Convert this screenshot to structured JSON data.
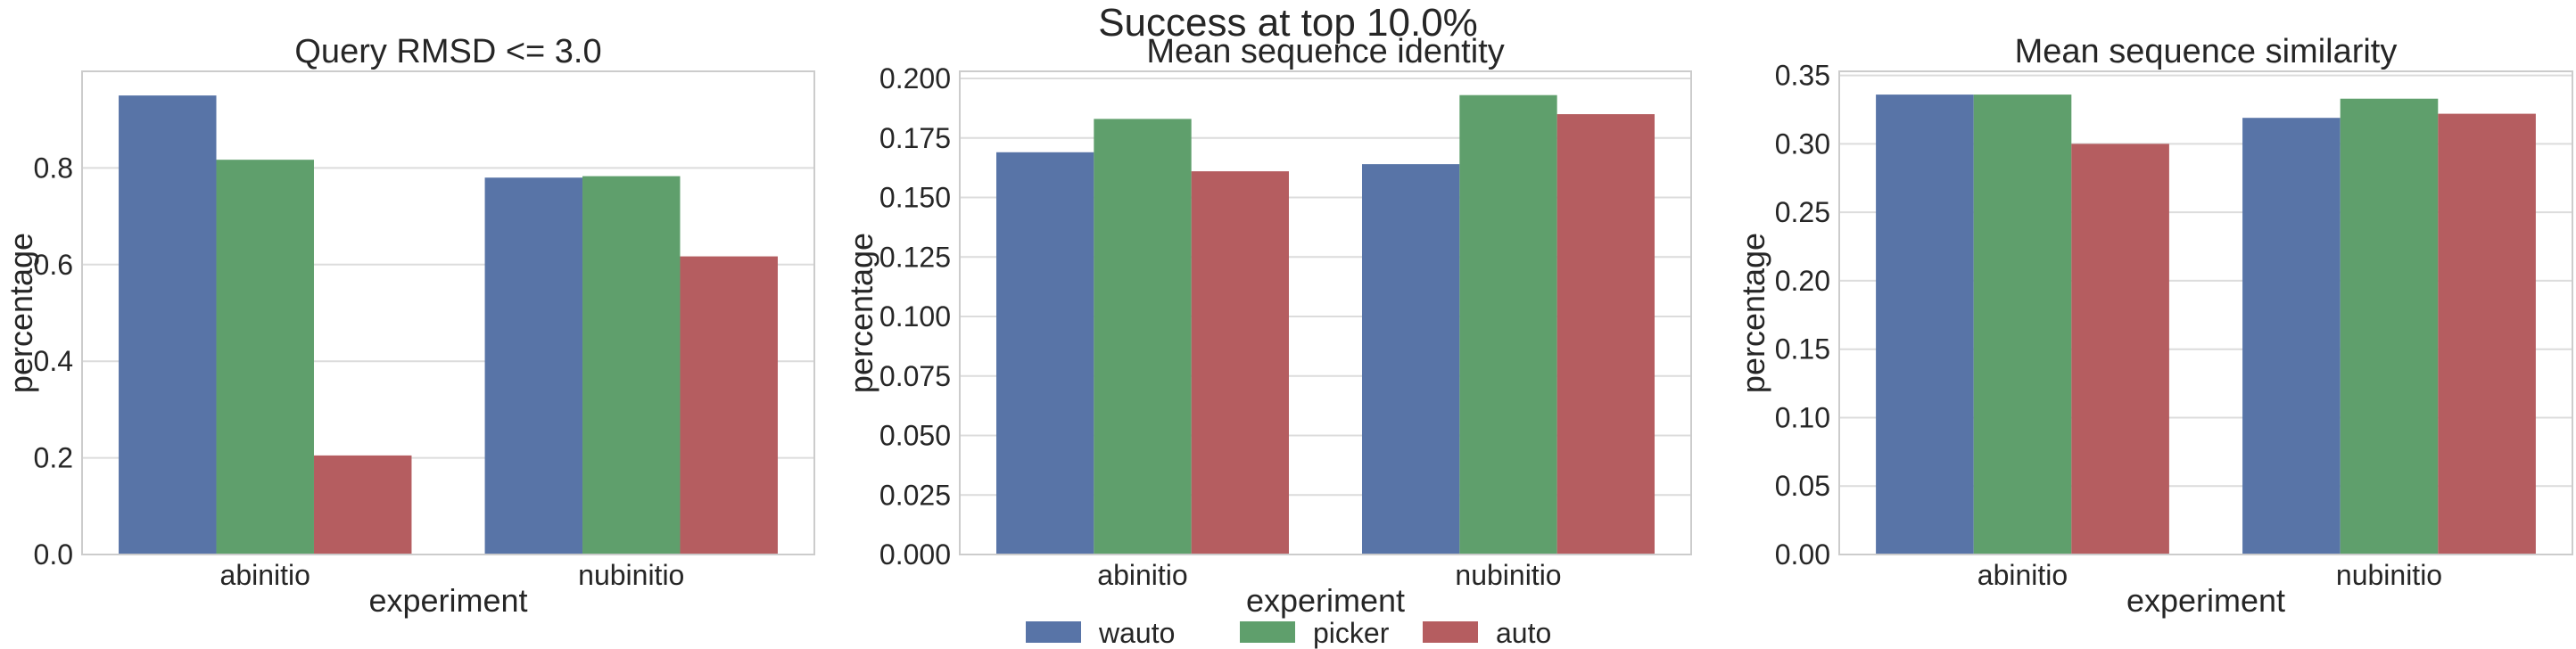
{
  "figure": {
    "suptitle": "Success at top 10.0%"
  },
  "legend": {
    "entries": [
      {
        "name": "wauto",
        "color": "#5874a7"
      },
      {
        "name": "picker",
        "color": "#5f9f6c"
      },
      {
        "name": "auto",
        "color": "#b55d60"
      }
    ]
  },
  "chart_data": [
    {
      "type": "bar",
      "title": "Query RMSD <= 3.0",
      "xlabel": "experiment",
      "ylabel": "percentage",
      "categories": [
        "abinitio",
        "nubinitio"
      ],
      "series": [
        {
          "name": "wauto",
          "values": [
            0.95,
            0.78
          ]
        },
        {
          "name": "picker",
          "values": [
            0.817,
            0.783
          ]
        },
        {
          "name": "auto",
          "values": [
            0.205,
            0.617
          ]
        }
      ],
      "ylim": [
        0,
        1.0
      ],
      "yticks": [
        0.0,
        0.2,
        0.4,
        0.6,
        0.8
      ],
      "ytick_labels": [
        "0.0",
        "0.2",
        "0.4",
        "0.6",
        "0.8"
      ],
      "grid": true
    },
    {
      "type": "bar",
      "title": "Mean sequence identity",
      "xlabel": "experiment",
      "ylabel": "percentage",
      "categories": [
        "abinitio",
        "nubinitio"
      ],
      "series": [
        {
          "name": "wauto",
          "values": [
            0.169,
            0.164
          ]
        },
        {
          "name": "picker",
          "values": [
            0.183,
            0.193
          ]
        },
        {
          "name": "auto",
          "values": [
            0.161,
            0.185
          ]
        }
      ],
      "ylim": [
        0,
        0.203
      ],
      "yticks": [
        0.0,
        0.025,
        0.05,
        0.075,
        0.1,
        0.125,
        0.15,
        0.175,
        0.2
      ],
      "ytick_labels": [
        "0.000",
        "0.025",
        "0.050",
        "0.075",
        "0.100",
        "0.125",
        "0.150",
        "0.175",
        "0.200"
      ],
      "grid": true
    },
    {
      "type": "bar",
      "title": "Mean sequence similarity",
      "xlabel": "experiment",
      "ylabel": "percentage",
      "categories": [
        "abinitio",
        "nubinitio"
      ],
      "series": [
        {
          "name": "wauto",
          "values": [
            0.336,
            0.319
          ]
        },
        {
          "name": "picker",
          "values": [
            0.336,
            0.333
          ]
        },
        {
          "name": "auto",
          "values": [
            0.3,
            0.322
          ]
        }
      ],
      "ylim": [
        0,
        0.353
      ],
      "yticks": [
        0.0,
        0.05,
        0.1,
        0.15,
        0.2,
        0.25,
        0.3,
        0.35
      ],
      "ytick_labels": [
        "0.00",
        "0.05",
        "0.10",
        "0.15",
        "0.20",
        "0.25",
        "0.30",
        "0.35"
      ],
      "grid": true
    }
  ]
}
